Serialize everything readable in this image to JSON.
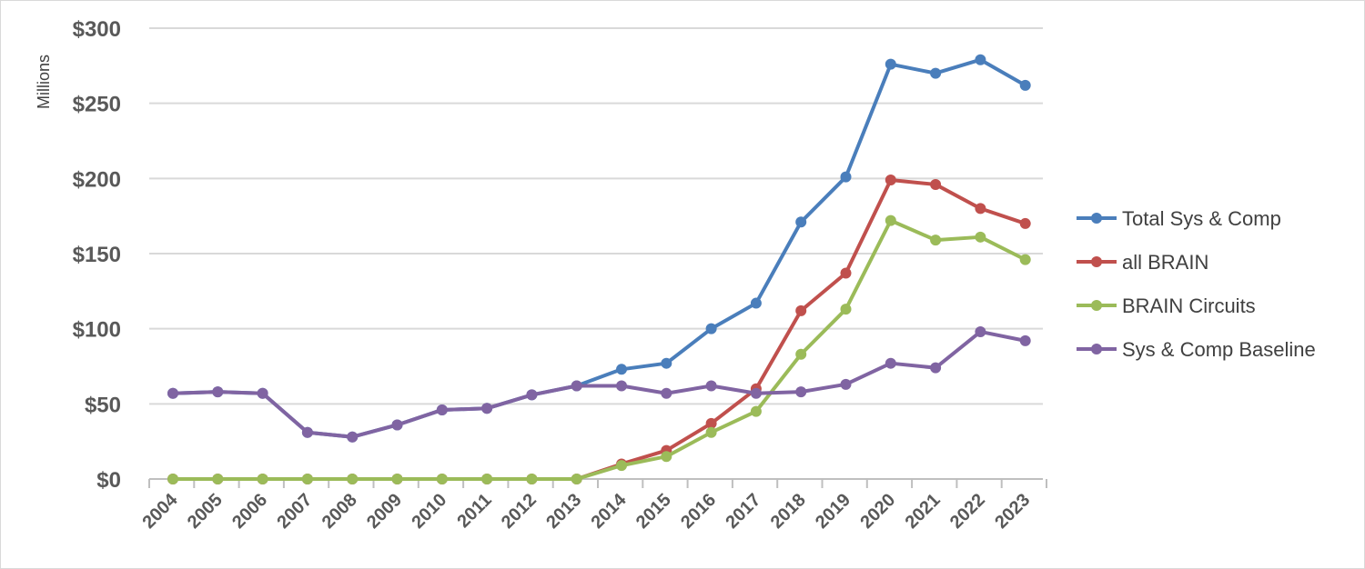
{
  "chart_data": {
    "type": "line",
    "ylabel": "Millions",
    "ylim": [
      0,
      300
    ],
    "ytick_labels": [
      "$0",
      "$50",
      "$100",
      "$150",
      "$200",
      "$250",
      "$300"
    ],
    "yticks": [
      0,
      50,
      100,
      150,
      200,
      250,
      300
    ],
    "grid": true,
    "legend_position": "right",
    "categories": [
      "2004",
      "2005",
      "2006",
      "2007",
      "2008",
      "2009",
      "2010",
      "2011",
      "2012",
      "2013",
      "2014",
      "2015",
      "2016",
      "2017",
      "2018",
      "2019",
      "2020",
      "2021",
      "2022",
      "2023"
    ],
    "series": [
      {
        "name": "Total Sys & Comp",
        "color": "#4a7ebb",
        "values": [
          57,
          58,
          57,
          31,
          28,
          36,
          46,
          47,
          56,
          62,
          73,
          77,
          100,
          117,
          171,
          201,
          276,
          270,
          279,
          262
        ]
      },
      {
        "name": "all BRAIN",
        "color": "#c0504d",
        "values": [
          0,
          0,
          0,
          0,
          0,
          0,
          0,
          0,
          0,
          0,
          10,
          19,
          37,
          60,
          112,
          137,
          199,
          196,
          180,
          170
        ]
      },
      {
        "name": "BRAIN Circuits",
        "color": "#9bbb59",
        "values": [
          0,
          0,
          0,
          0,
          0,
          0,
          0,
          0,
          0,
          0,
          9,
          15,
          31,
          45,
          83,
          113,
          172,
          159,
          161,
          146
        ]
      },
      {
        "name": "Sys & Comp Baseline",
        "color": "#8064a2",
        "values": [
          57,
          58,
          57,
          31,
          28,
          36,
          46,
          47,
          56,
          62,
          62,
          57,
          62,
          57,
          58,
          63,
          77,
          74,
          98,
          92
        ]
      }
    ]
  }
}
